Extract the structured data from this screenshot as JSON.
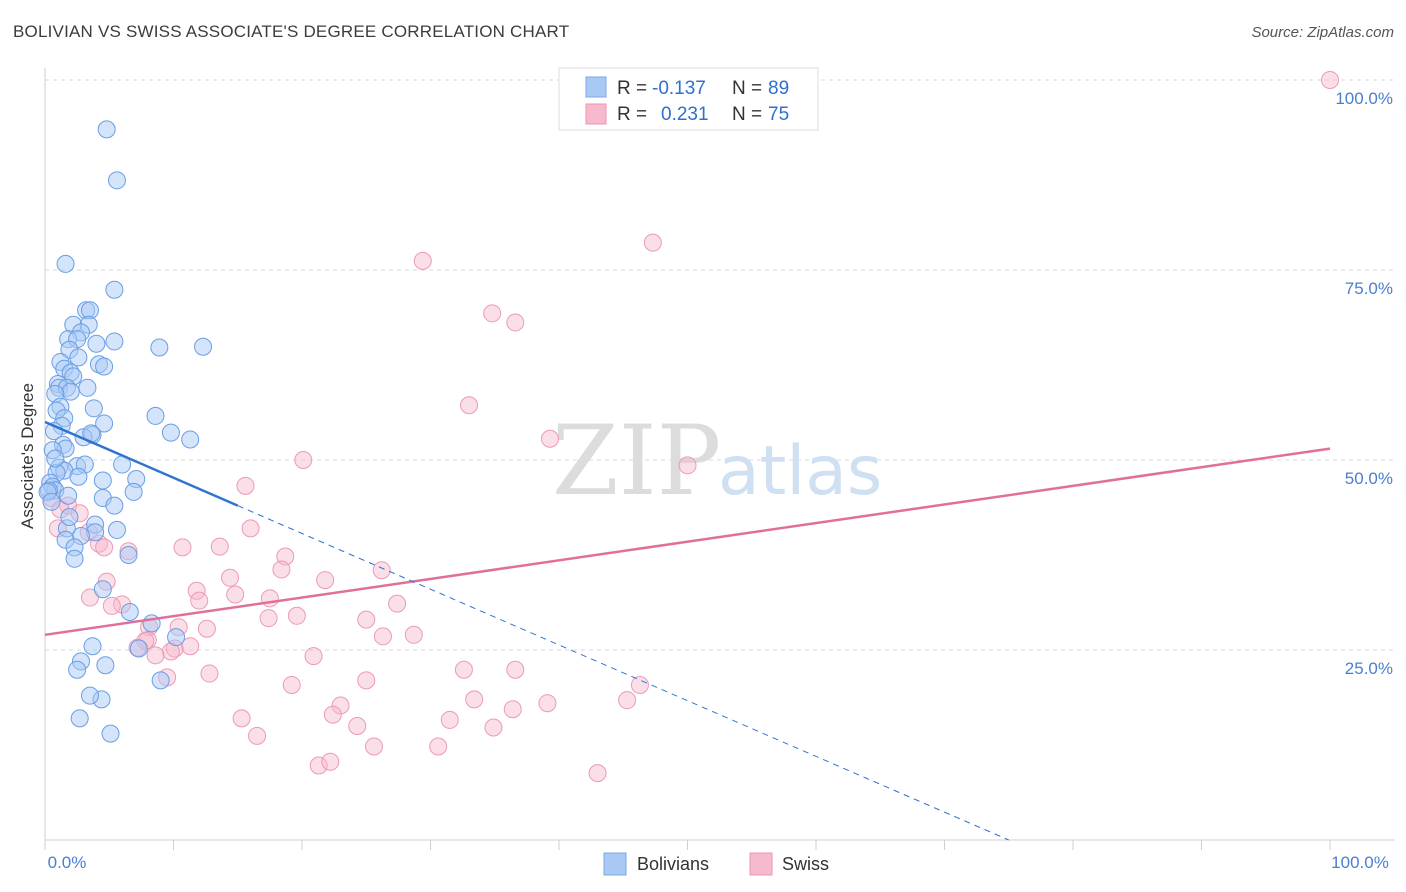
{
  "header": {
    "title": "BOLIVIAN VS SWISS ASSOCIATE'S DEGREE CORRELATION CHART",
    "source": "Source: ZipAtlas.com"
  },
  "watermark": {
    "zip": "ZIP",
    "atlas": "atlas"
  },
  "legend": {
    "rows": [
      {
        "r_label": "R =",
        "r_value": "-0.137",
        "n_label": "N =",
        "n_value": "89",
        "color": "#a9c9f5"
      },
      {
        "r_label": "R =",
        "r_value": "0.231",
        "n_label": "N =",
        "n_value": "75",
        "color": "#f7b9cd"
      }
    ]
  },
  "bottom_legend": [
    {
      "label": "Bolivians",
      "color": "#a9c9f5"
    },
    {
      "label": "Swiss",
      "color": "#f7b9cd"
    }
  ],
  "chart_data": {
    "type": "scatter",
    "title": "BOLIVIAN VS SWISS ASSOCIATE'S DEGREE CORRELATION CHART",
    "xlabel": "",
    "ylabel": "Associate's Degree",
    "xlim": [
      0,
      100
    ],
    "ylim": [
      0,
      100
    ],
    "x_tick_labels": [
      "0.0%",
      "100.0%"
    ],
    "y_tick_labels": [
      "25.0%",
      "50.0%",
      "75.0%",
      "100.0%"
    ],
    "y_ticks": [
      25,
      50,
      75,
      100
    ],
    "colors": {
      "bolivians": "#4f8ee0",
      "swiss": "#e889a9",
      "bolivians_line": "#2f74d0",
      "swiss_line": "#e0709a"
    },
    "series": [
      {
        "name": "Bolivians",
        "trend": {
          "x0": 0,
          "y0": 55,
          "x1_solid": 15,
          "y1_solid": 44,
          "x1_dashed": 75,
          "y1_dashed": 0
        },
        "points": [
          [
            4.8,
            93.5
          ],
          [
            5.6,
            86.8
          ],
          [
            1.6,
            75.8
          ],
          [
            5.4,
            72.4
          ],
          [
            3.2,
            69.7
          ],
          [
            3.5,
            69.7
          ],
          [
            2.2,
            67.8
          ],
          [
            3.4,
            67.8
          ],
          [
            2.8,
            66.8
          ],
          [
            1.8,
            65.9
          ],
          [
            2.5,
            65.9
          ],
          [
            5.4,
            65.6
          ],
          [
            4.0,
            65.3
          ],
          [
            12.3,
            64.9
          ],
          [
            8.9,
            64.8
          ],
          [
            1.9,
            64.5
          ],
          [
            2.6,
            63.5
          ],
          [
            1.2,
            62.9
          ],
          [
            4.2,
            62.6
          ],
          [
            4.6,
            62.3
          ],
          [
            1.5,
            62.0
          ],
          [
            2.0,
            61.5
          ],
          [
            2.2,
            61.0
          ],
          [
            1.0,
            60.0
          ],
          [
            1.1,
            59.5
          ],
          [
            3.3,
            59.5
          ],
          [
            1.7,
            59.5
          ],
          [
            2.0,
            59.0
          ],
          [
            0.8,
            58.7
          ],
          [
            1.2,
            57.0
          ],
          [
            3.8,
            56.8
          ],
          [
            0.9,
            56.5
          ],
          [
            1.5,
            55.5
          ],
          [
            8.6,
            55.8
          ],
          [
            4.6,
            54.8
          ],
          [
            1.3,
            54.5
          ],
          [
            0.7,
            53.8
          ],
          [
            9.8,
            53.6
          ],
          [
            3.7,
            53.3
          ],
          [
            3.0,
            53.0
          ],
          [
            3.6,
            53.5
          ],
          [
            11.3,
            52.7
          ],
          [
            1.4,
            52.0
          ],
          [
            1.6,
            51.5
          ],
          [
            0.6,
            51.3
          ],
          [
            6.0,
            49.4
          ],
          [
            2.5,
            49.2
          ],
          [
            3.1,
            49.4
          ],
          [
            1.1,
            49.0
          ],
          [
            1.5,
            48.6
          ],
          [
            0.9,
            48.3
          ],
          [
            7.1,
            47.5
          ],
          [
            4.5,
            47.3
          ],
          [
            0.4,
            47.0
          ],
          [
            0.6,
            46.5
          ],
          [
            0.8,
            46.0
          ],
          [
            0.3,
            46.0
          ],
          [
            0.2,
            45.8
          ],
          [
            4.5,
            45.0
          ],
          [
            5.4,
            44.0
          ],
          [
            0.5,
            44.5
          ],
          [
            3.9,
            41.5
          ],
          [
            1.7,
            41.0
          ],
          [
            5.6,
            40.8
          ],
          [
            3.9,
            40.5
          ],
          [
            2.8,
            40.0
          ],
          [
            1.6,
            39.5
          ],
          [
            2.3,
            38.5
          ],
          [
            6.5,
            37.5
          ],
          [
            2.3,
            37.0
          ],
          [
            4.5,
            33.0
          ],
          [
            6.6,
            30.0
          ],
          [
            8.3,
            28.5
          ],
          [
            10.2,
            26.7
          ],
          [
            3.7,
            25.5
          ],
          [
            7.3,
            25.2
          ],
          [
            2.8,
            23.5
          ],
          [
            4.7,
            23.0
          ],
          [
            2.5,
            22.4
          ],
          [
            9.0,
            21.0
          ],
          [
            4.4,
            18.5
          ],
          [
            2.7,
            16.0
          ],
          [
            5.1,
            14.0
          ],
          [
            3.5,
            19.0
          ],
          [
            1.8,
            45.3
          ],
          [
            2.6,
            47.8
          ],
          [
            0.8,
            50.2
          ],
          [
            1.9,
            42.5
          ],
          [
            6.9,
            45.8
          ]
        ]
      },
      {
        "name": "Swiss",
        "trend": {
          "x0": 0,
          "y0": 27,
          "x1": 100,
          "y1": 51.5
        },
        "points": [
          [
            100,
            100
          ],
          [
            47.3,
            78.6
          ],
          [
            29.4,
            76.2
          ],
          [
            34.8,
            69.3
          ],
          [
            36.6,
            68.1
          ],
          [
            33.0,
            57.2
          ],
          [
            39.3,
            52.8
          ],
          [
            50.0,
            49.3
          ],
          [
            20.1,
            50.0
          ],
          [
            15.6,
            46.6
          ],
          [
            0.5,
            45.0
          ],
          [
            1.8,
            44.0
          ],
          [
            1.2,
            43.5
          ],
          [
            2.7,
            43.0
          ],
          [
            1.0,
            41.0
          ],
          [
            16.0,
            41.0
          ],
          [
            3.4,
            40.5
          ],
          [
            4.2,
            39.0
          ],
          [
            4.6,
            38.5
          ],
          [
            6.5,
            38.0
          ],
          [
            10.7,
            38.5
          ],
          [
            13.6,
            38.6
          ],
          [
            18.7,
            37.3
          ],
          [
            26.2,
            35.5
          ],
          [
            18.4,
            35.6
          ],
          [
            14.4,
            34.5
          ],
          [
            4.8,
            34.0
          ],
          [
            21.8,
            34.2
          ],
          [
            11.8,
            32.8
          ],
          [
            14.8,
            32.3
          ],
          [
            17.5,
            31.8
          ],
          [
            12.0,
            31.5
          ],
          [
            27.4,
            31.1
          ],
          [
            6.0,
            31.0
          ],
          [
            19.6,
            29.5
          ],
          [
            17.4,
            29.2
          ],
          [
            25.0,
            29.0
          ],
          [
            8.1,
            28.0
          ],
          [
            10.4,
            28.0
          ],
          [
            12.6,
            27.8
          ],
          [
            8.0,
            26.3
          ],
          [
            28.7,
            27.0
          ],
          [
            26.3,
            26.8
          ],
          [
            7.8,
            26.2
          ],
          [
            10.1,
            25.2
          ],
          [
            11.3,
            25.5
          ],
          [
            9.8,
            24.8
          ],
          [
            8.6,
            24.3
          ],
          [
            7.2,
            25.3
          ],
          [
            20.9,
            24.2
          ],
          [
            9.5,
            21.4
          ],
          [
            32.6,
            22.4
          ],
          [
            36.6,
            22.4
          ],
          [
            12.8,
            21.9
          ],
          [
            25.0,
            21.0
          ],
          [
            19.2,
            20.4
          ],
          [
            46.3,
            20.4
          ],
          [
            23.0,
            17.7
          ],
          [
            36.4,
            17.2
          ],
          [
            39.1,
            18.0
          ],
          [
            33.4,
            18.5
          ],
          [
            45.3,
            18.4
          ],
          [
            22.4,
            16.5
          ],
          [
            15.3,
            16.0
          ],
          [
            31.5,
            15.8
          ],
          [
            24.3,
            15.0
          ],
          [
            34.9,
            14.8
          ],
          [
            16.5,
            13.7
          ],
          [
            25.6,
            12.3
          ],
          [
            30.6,
            12.3
          ],
          [
            21.3,
            9.8
          ],
          [
            22.2,
            10.3
          ],
          [
            43.0,
            8.8
          ],
          [
            3.5,
            31.9
          ],
          [
            5.2,
            30.8
          ]
        ]
      }
    ]
  }
}
